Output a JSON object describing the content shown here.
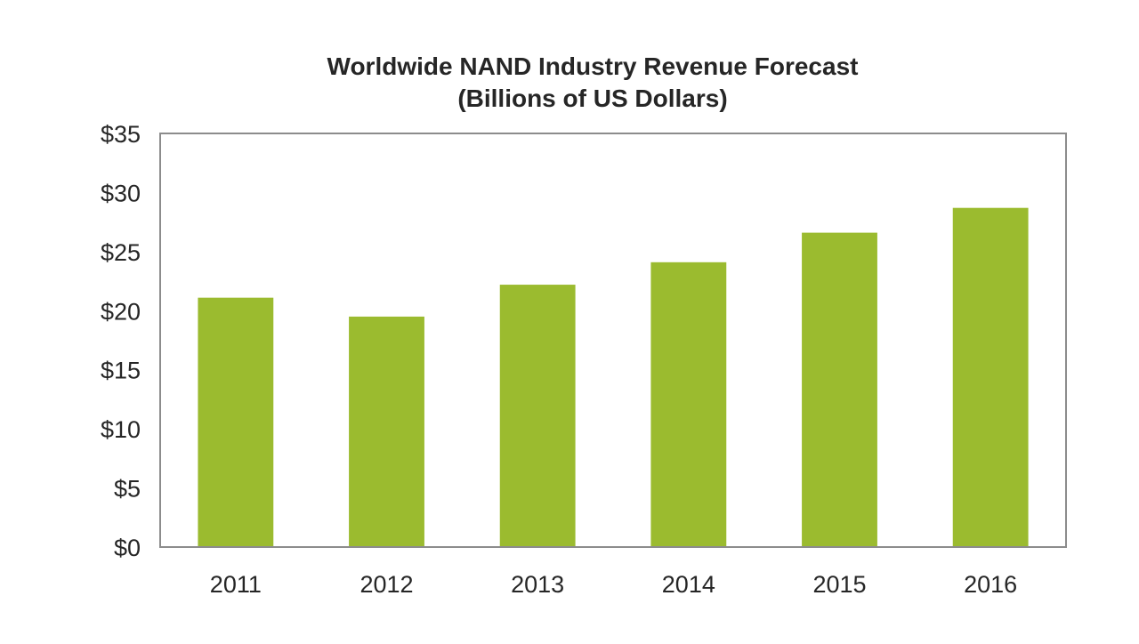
{
  "chart_data": {
    "type": "bar",
    "title": "Worldwide NAND Industry Revenue Forecast",
    "subtitle": "(Billions of US Dollars)",
    "xlabel": "",
    "ylabel": "",
    "categories": [
      "2011",
      "2012",
      "2013",
      "2014",
      "2015",
      "2016"
    ],
    "values": [
      21.1,
      19.5,
      22.2,
      24.1,
      26.6,
      28.7
    ],
    "ylim": [
      0,
      35
    ],
    "yticks": [
      0,
      5,
      10,
      15,
      20,
      25,
      30,
      35
    ],
    "ytick_labels": [
      "$0",
      "$5",
      "$10",
      "$15",
      "$20",
      "$25",
      "$30",
      "$35"
    ],
    "grid": false,
    "legend": "none",
    "bar_color": "#9bbb2f",
    "frame_color": "#8c8c8c"
  }
}
